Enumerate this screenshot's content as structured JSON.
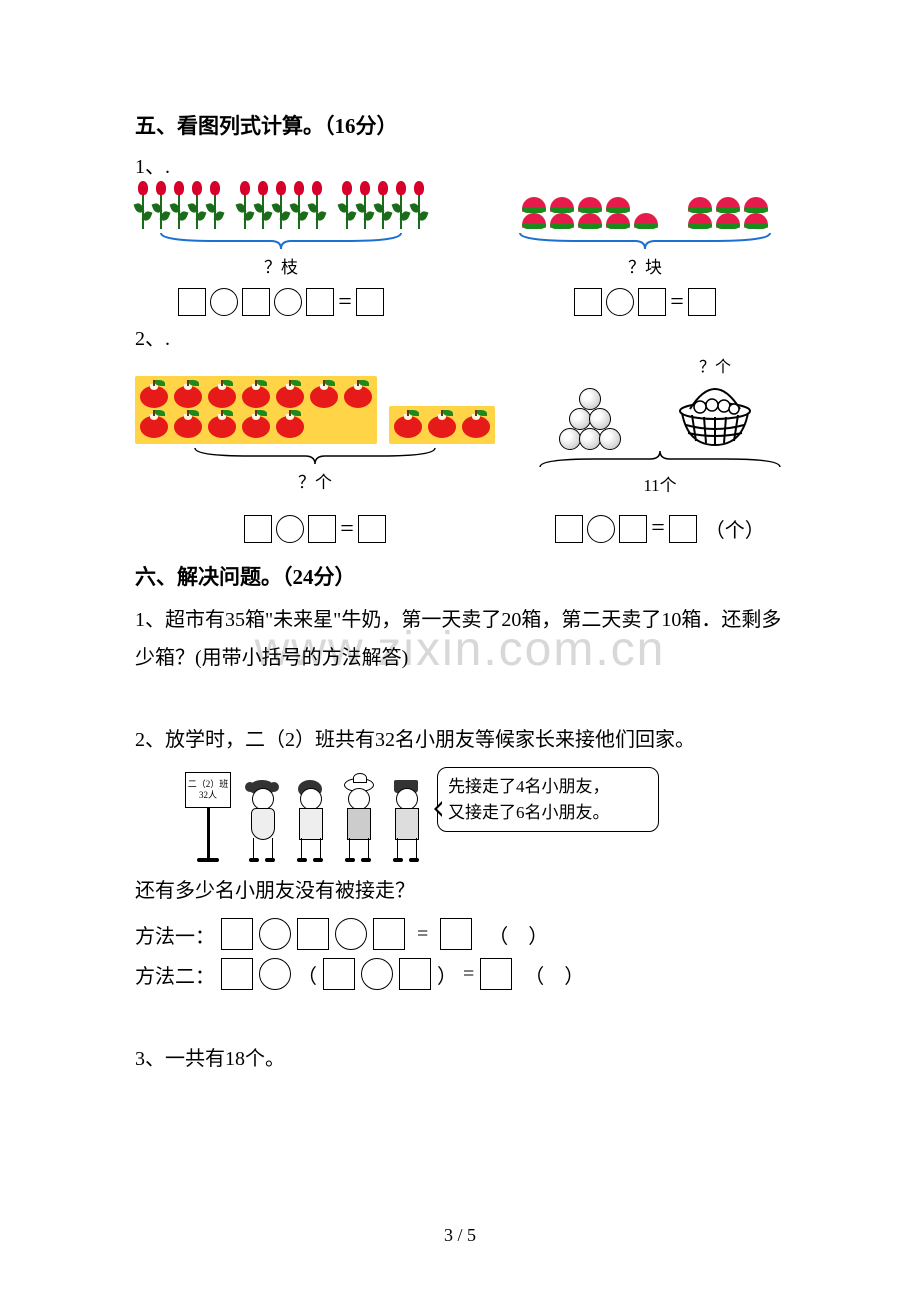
{
  "watermark": "www.zixin.com.cn",
  "footer": "3 / 5",
  "section5": {
    "heading": "五、看图列式计算。（16分）",
    "item1_label": "1、.",
    "roses": {
      "groups": [
        5,
        5,
        5
      ],
      "brace_label": "？枝",
      "brace_color": "#1d70d1"
    },
    "watermelons": {
      "groups": [
        [
          4,
          5
        ],
        [
          3,
          3
        ]
      ],
      "brace_label": "？块",
      "brace_color": "#1d70d1"
    },
    "item2_label": "2、.",
    "apples": {
      "rows": [
        7,
        5,
        3
      ],
      "brace_label": "？个"
    },
    "pyramid_basket": {
      "pyramid_rows": [
        1,
        2,
        3
      ],
      "basket_label": "？个",
      "bottom_label": "11个",
      "unit": "（个）"
    }
  },
  "section6": {
    "heading": "六、解决问题。（24分）",
    "q1": "1、超市有35箱\"未来星\"牛奶，第一天卖了20箱，第二天卖了10箱．还剩多少箱？(用带小括号的方法解答)",
    "q2_lead": "2、放学时，二（2）班共有32名小朋友等候家长来接他们回家。",
    "sign_line1": "二（2）班",
    "sign_line2": "32人",
    "speech_line1": "先接走了4名小朋友，",
    "speech_line2": "又接走了6名小朋友。",
    "q2_ask": "还有多少名小朋友没有被接走？",
    "method1_label": "方法一：",
    "method2_label": "方法二：",
    "q3": "3、一共有18个。"
  }
}
